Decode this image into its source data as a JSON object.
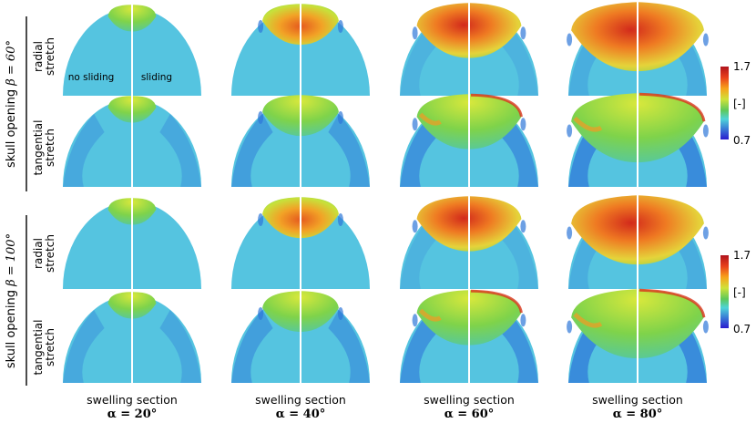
{
  "groups": [
    {
      "label_prefix": "skull opening ",
      "label_math": "β = 60°"
    },
    {
      "label_prefix": "skull opening ",
      "label_math": "β = 100°"
    }
  ],
  "row_labels": [
    {
      "line1": "radial",
      "line2": "stretch"
    },
    {
      "line1": "tangential",
      "line2": "stretch"
    }
  ],
  "columns": [
    {
      "title": "swelling section",
      "math": "α = 20°",
      "swell": 0.2
    },
    {
      "title": "swelling section",
      "math": "α = 40°",
      "swell": 0.45
    },
    {
      "title": "swelling section",
      "math": "α = 60°",
      "swell": 0.7
    },
    {
      "title": "swelling section",
      "math": "α = 80°",
      "swell": 0.95
    }
  ],
  "annotations": {
    "left": "no sliding",
    "right": "sliding"
  },
  "colorbar": {
    "max": "1.7",
    "unit": "[-]",
    "min": "0.7",
    "colors": [
      "#b0131d",
      "#e8401c",
      "#f7a21b",
      "#cfe23a",
      "#5ec85a",
      "#4fd3d8",
      "#3a78d6",
      "#2a1ccf"
    ]
  },
  "colors": {
    "base": "#55c4e0",
    "dark": "#2f77d8",
    "green": "#5fcf4a",
    "yellow": "#d3e63b",
    "orange": "#f39a24",
    "red": "#d9331c"
  }
}
